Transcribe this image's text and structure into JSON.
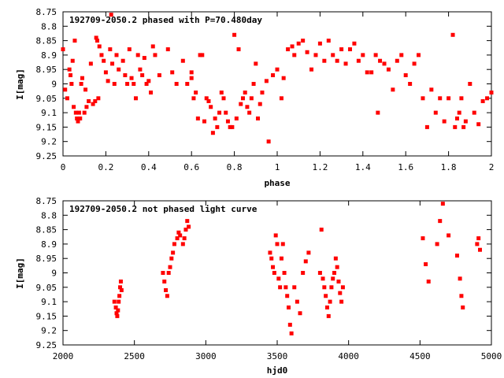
{
  "chart_data": [
    {
      "type": "scatter",
      "title": "192709-2050.2 phased with P=70.480day",
      "xlabel": "phase",
      "ylabel": "I[mag]",
      "xlim": [
        0,
        2
      ],
      "ylim": [
        9.25,
        8.75
      ],
      "y_inverted": true,
      "xticks": [
        "0",
        "0.2",
        "0.4",
        "0.6",
        "0.8",
        "1",
        "1.2",
        "1.4",
        "1.6",
        "1.8",
        "2"
      ],
      "yticks": [
        "8.75",
        "8.8",
        "8.85",
        "8.9",
        "8.95",
        "9",
        "9.05",
        "9.1",
        "9.15",
        "9.2",
        "9.25"
      ],
      "marker_color": "#ff0000",
      "series": [
        {
          "points": [
            [
              0.0,
              8.88
            ],
            [
              0.01,
              9.02
            ],
            [
              0.02,
              9.05
            ],
            [
              0.03,
              8.95
            ],
            [
              0.035,
              8.97
            ],
            [
              0.04,
              9.0
            ],
            [
              0.045,
              8.92
            ],
            [
              0.05,
              9.08
            ],
            [
              0.055,
              8.85
            ],
            [
              0.06,
              9.1
            ],
            [
              0.065,
              9.12
            ],
            [
              0.07,
              9.13
            ],
            [
              0.075,
              9.1
            ],
            [
              0.08,
              9.12
            ],
            [
              0.085,
              9.0
            ],
            [
              0.09,
              8.98
            ],
            [
              0.1,
              9.1
            ],
            [
              0.105,
              9.02
            ],
            [
              0.11,
              9.08
            ],
            [
              0.12,
              9.06
            ],
            [
              0.13,
              8.93
            ],
            [
              0.14,
              9.07
            ],
            [
              0.15,
              9.06
            ],
            [
              0.155,
              8.84
            ],
            [
              0.16,
              8.85
            ],
            [
              0.165,
              9.05
            ],
            [
              0.17,
              8.87
            ],
            [
              0.18,
              8.9
            ],
            [
              0.19,
              8.92
            ],
            [
              0.2,
              8.96
            ],
            [
              0.21,
              8.99
            ],
            [
              0.22,
              8.88
            ],
            [
              0.225,
              8.76
            ],
            [
              0.23,
              8.93
            ],
            [
              0.24,
              9.0
            ],
            [
              0.25,
              8.9
            ],
            [
              0.26,
              8.95
            ],
            [
              0.28,
              8.92
            ],
            [
              0.29,
              8.97
            ],
            [
              0.3,
              9.0
            ],
            [
              0.31,
              8.88
            ],
            [
              0.32,
              8.98
            ],
            [
              0.33,
              9.0
            ],
            [
              0.34,
              9.05
            ],
            [
              0.35,
              8.9
            ],
            [
              0.36,
              8.95
            ],
            [
              0.37,
              8.97
            ],
            [
              0.38,
              8.91
            ],
            [
              0.39,
              9.0
            ],
            [
              0.4,
              8.99
            ],
            [
              0.41,
              9.03
            ],
            [
              0.42,
              8.87
            ],
            [
              0.43,
              8.9
            ],
            [
              0.45,
              8.97
            ],
            [
              0.49,
              8.88
            ],
            [
              0.51,
              8.96
            ],
            [
              0.53,
              9.0
            ],
            [
              0.56,
              8.92
            ],
            [
              0.58,
              9.0
            ],
            [
              0.6,
              8.98
            ],
            [
              0.6,
              8.96
            ],
            [
              0.61,
              9.05
            ],
            [
              0.62,
              9.03
            ],
            [
              0.63,
              9.12
            ],
            [
              0.64,
              8.9
            ],
            [
              0.65,
              8.9
            ],
            [
              0.66,
              9.13
            ],
            [
              0.67,
              9.05
            ],
            [
              0.68,
              9.06
            ],
            [
              0.69,
              9.08
            ],
            [
              0.7,
              9.17
            ],
            [
              0.71,
              9.12
            ],
            [
              0.72,
              9.15
            ],
            [
              0.73,
              9.1
            ],
            [
              0.74,
              9.03
            ],
            [
              0.75,
              9.05
            ],
            [
              0.76,
              9.1
            ],
            [
              0.77,
              9.13
            ],
            [
              0.78,
              9.15
            ],
            [
              0.79,
              9.15
            ],
            [
              0.8,
              8.83
            ],
            [
              0.81,
              9.12
            ],
            [
              0.82,
              8.88
            ],
            [
              0.83,
              9.07
            ],
            [
              0.84,
              9.05
            ],
            [
              0.85,
              9.03
            ],
            [
              0.86,
              9.08
            ],
            [
              0.87,
              9.1
            ],
            [
              0.88,
              9.05
            ],
            [
              0.89,
              9.0
            ],
            [
              0.9,
              8.93
            ],
            [
              0.91,
              9.12
            ],
            [
              0.92,
              9.07
            ],
            [
              0.93,
              9.03
            ],
            [
              0.95,
              8.99
            ],
            [
              0.96,
              9.2
            ],
            [
              0.98,
              8.97
            ],
            [
              1.0,
              8.95
            ],
            [
              1.02,
              9.05
            ],
            [
              1.03,
              8.98
            ],
            [
              1.05,
              8.88
            ],
            [
              1.07,
              8.87
            ],
            [
              1.08,
              8.9
            ],
            [
              1.1,
              8.86
            ],
            [
              1.12,
              8.85
            ],
            [
              1.14,
              8.89
            ],
            [
              1.16,
              8.95
            ],
            [
              1.18,
              8.9
            ],
            [
              1.2,
              8.86
            ],
            [
              1.22,
              8.92
            ],
            [
              1.24,
              8.85
            ],
            [
              1.26,
              8.9
            ],
            [
              1.28,
              8.92
            ],
            [
              1.3,
              8.88
            ],
            [
              1.32,
              8.93
            ],
            [
              1.34,
              8.88
            ],
            [
              1.36,
              8.86
            ],
            [
              1.38,
              8.92
            ],
            [
              1.4,
              8.9
            ],
            [
              1.42,
              8.96
            ],
            [
              1.44,
              8.96
            ],
            [
              1.46,
              8.9
            ],
            [
              1.47,
              9.1
            ],
            [
              1.48,
              8.92
            ],
            [
              1.5,
              8.93
            ],
            [
              1.52,
              8.95
            ],
            [
              1.54,
              9.02
            ],
            [
              1.56,
              8.92
            ],
            [
              1.58,
              8.9
            ],
            [
              1.6,
              8.97
            ],
            [
              1.62,
              9.0
            ],
            [
              1.64,
              8.93
            ],
            [
              1.66,
              8.9
            ],
            [
              1.68,
              9.05
            ],
            [
              1.7,
              9.15
            ],
            [
              1.72,
              9.02
            ],
            [
              1.74,
              9.1
            ],
            [
              1.76,
              9.05
            ],
            [
              1.78,
              9.13
            ],
            [
              1.8,
              9.05
            ],
            [
              1.82,
              8.83
            ],
            [
              1.83,
              9.15
            ],
            [
              1.84,
              9.12
            ],
            [
              1.85,
              9.1
            ],
            [
              1.86,
              9.05
            ],
            [
              1.87,
              9.15
            ],
            [
              1.88,
              9.13
            ],
            [
              1.9,
              9.0
            ],
            [
              1.92,
              9.1
            ],
            [
              1.94,
              9.14
            ],
            [
              1.96,
              9.06
            ],
            [
              1.98,
              9.05
            ],
            [
              2.0,
              9.03
            ]
          ]
        }
      ]
    },
    {
      "type": "scatter",
      "title": "192709-2050.2 not phased light curve",
      "xlabel": "hjd0",
      "ylabel": "I[mag]",
      "xlim": [
        2000,
        5000
      ],
      "ylim": [
        9.25,
        8.75
      ],
      "y_inverted": true,
      "xticks": [
        "2000",
        "2500",
        "3000",
        "3500",
        "4000",
        "4500",
        "5000"
      ],
      "yticks": [
        "8.75",
        "8.8",
        "8.85",
        "8.9",
        "8.95",
        "9",
        "9.05",
        "9.1",
        "9.15",
        "9.2",
        "9.25"
      ],
      "marker_color": "#ff0000",
      "series": [
        {
          "points": [
            [
              2360,
              9.1
            ],
            [
              2370,
              9.12
            ],
            [
              2375,
              9.14
            ],
            [
              2380,
              9.15
            ],
            [
              2385,
              9.13
            ],
            [
              2390,
              9.1
            ],
            [
              2395,
              9.08
            ],
            [
              2400,
              9.05
            ],
            [
              2405,
              9.03
            ],
            [
              2410,
              9.06
            ],
            [
              2700,
              9.0
            ],
            [
              2710,
              9.03
            ],
            [
              2720,
              9.06
            ],
            [
              2730,
              9.08
            ],
            [
              2740,
              9.0
            ],
            [
              2750,
              8.98
            ],
            [
              2760,
              8.95
            ],
            [
              2770,
              8.93
            ],
            [
              2780,
              8.9
            ],
            [
              2800,
              8.88
            ],
            [
              2810,
              8.86
            ],
            [
              2820,
              8.87
            ],
            [
              2840,
              8.9
            ],
            [
              2850,
              8.88
            ],
            [
              2860,
              8.85
            ],
            [
              2870,
              8.82
            ],
            [
              2880,
              8.84
            ],
            [
              3450,
              8.93
            ],
            [
              3460,
              8.95
            ],
            [
              3470,
              8.98
            ],
            [
              3480,
              9.0
            ],
            [
              3490,
              8.87
            ],
            [
              3500,
              8.9
            ],
            [
              3510,
              9.02
            ],
            [
              3520,
              9.05
            ],
            [
              3530,
              8.95
            ],
            [
              3540,
              8.9
            ],
            [
              3550,
              9.0
            ],
            [
              3560,
              9.05
            ],
            [
              3570,
              9.08
            ],
            [
              3580,
              9.12
            ],
            [
              3590,
              9.18
            ],
            [
              3600,
              9.21
            ],
            [
              3620,
              9.05
            ],
            [
              3640,
              9.1
            ],
            [
              3660,
              9.14
            ],
            [
              3680,
              9.0
            ],
            [
              3700,
              8.96
            ],
            [
              3720,
              8.93
            ],
            [
              3800,
              9.0
            ],
            [
              3810,
              8.85
            ],
            [
              3820,
              9.02
            ],
            [
              3830,
              9.05
            ],
            [
              3840,
              9.08
            ],
            [
              3850,
              9.12
            ],
            [
              3860,
              9.15
            ],
            [
              3870,
              9.1
            ],
            [
              3880,
              9.05
            ],
            [
              3890,
              9.02
            ],
            [
              3900,
              9.0
            ],
            [
              3910,
              8.95
            ],
            [
              3920,
              8.98
            ],
            [
              3930,
              9.03
            ],
            [
              3940,
              9.07
            ],
            [
              3950,
              9.1
            ],
            [
              3960,
              9.05
            ],
            [
              4520,
              8.88
            ],
            [
              4540,
              8.97
            ],
            [
              4560,
              9.03
            ],
            [
              4620,
              8.9
            ],
            [
              4640,
              8.82
            ],
            [
              4660,
              8.76
            ],
            [
              4700,
              8.87
            ],
            [
              4760,
              8.94
            ],
            [
              4780,
              9.02
            ],
            [
              4790,
              9.08
            ],
            [
              4800,
              9.12
            ],
            [
              4900,
              8.9
            ],
            [
              4910,
              8.88
            ],
            [
              4920,
              8.92
            ]
          ]
        }
      ]
    }
  ]
}
